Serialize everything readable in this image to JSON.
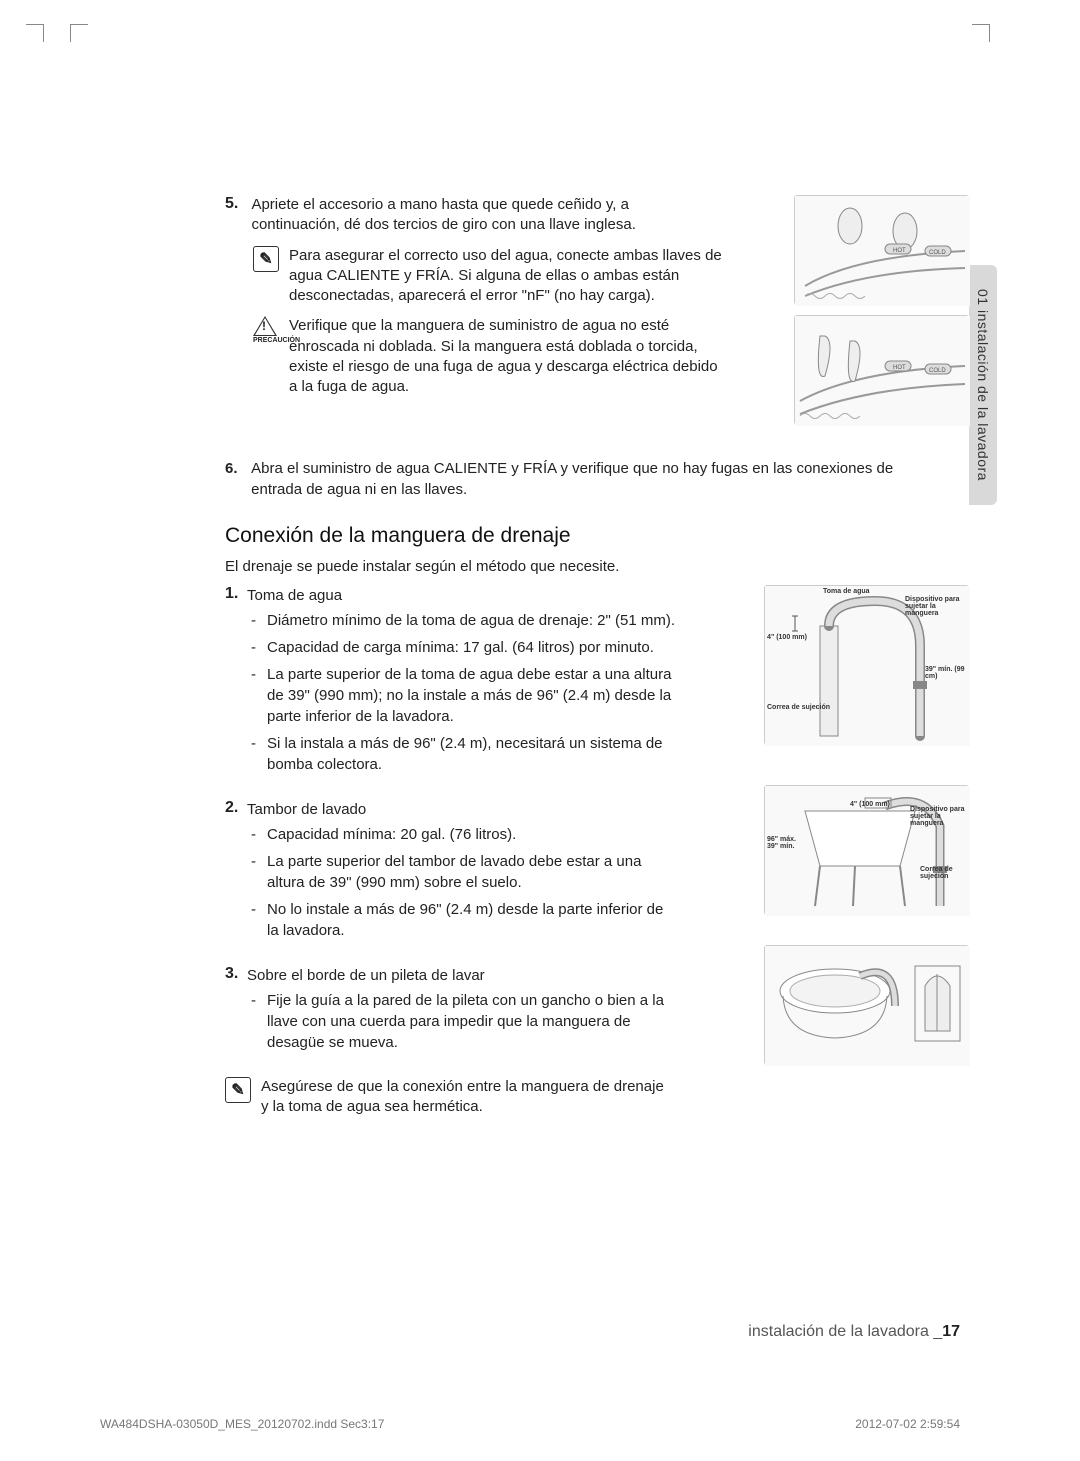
{
  "tab_label": "01  instalación de la lavadora",
  "step5": {
    "num": "5.",
    "text": "Apriete el accesorio a mano hasta que quede ceñido y, a continuación, dé dos tercios de giro con una llave inglesa.",
    "note_icon_glyph": "✎",
    "note": "Para asegurar el correcto uso del agua, conecte ambas llaves de agua CALIENTE y FRÍA. Si alguna de ellas o ambas están desconectadas, aparecerá el error \"nF\" (no hay carga).",
    "caution_label": "PRECAUCIÓN",
    "caution": "Verifique que la manguera de suministro de agua no esté enroscada ni doblada. Si la manguera está doblada o torcida, existe el riesgo de una fuga de agua y descarga eléctrica debido a la fuga de agua."
  },
  "step6": {
    "num": "6.",
    "text": "Abra el suministro de agua CALIENTE y FRÍA y verifique que no hay fugas en las conexiones de entrada de agua ni en las llaves."
  },
  "drain": {
    "heading": "Conexión de la manguera de drenaje",
    "intro": "El drenaje se puede instalar según el método que necesite.",
    "items": [
      {
        "num": "1.",
        "title": "Toma de agua",
        "bullets": [
          "Diámetro mínimo de la toma de agua de drenaje: 2\" (51 mm).",
          "Capacidad de carga mínima: 17 gal. (64 litros) por minuto.",
          "La parte superior de la toma de agua debe estar a una altura de 39\" (990 mm); no la instale a más de 96\" (2.4 m) desde la parte inferior de la lavadora.",
          "Si la instala a más de 96\" (2.4 m), necesitará un sistema de bomba colectora."
        ]
      },
      {
        "num": "2.",
        "title": "Tambor de lavado",
        "bullets": [
          "Capacidad mínima: 20 gal. (76 litros).",
          "La parte superior del tambor de lavado debe estar a una altura de 39\" (990 mm) sobre el suelo.",
          "No lo instale a más de 96\" (2.4 m) desde la parte inferior de la lavadora."
        ]
      },
      {
        "num": "3.",
        "title": "Sobre el borde de un pileta de lavar",
        "bullets": [
          "Fije la guía a la pared de la pileta con un gancho o bien a la llave con una cuerda para impedir que la manguera de desagüe se mueva."
        ]
      }
    ],
    "final_note_glyph": "✎",
    "final_note": "Asegúrese de que la conexión entre la manguera de drenaje y la toma de agua sea hermética."
  },
  "fig_labels": {
    "toma_de_agua": "Toma de agua",
    "dispositivo": "Dispositivo para sujetar la manguera",
    "four_inch": "4\" (100 mm)",
    "thirtynine": "39\" mín. (99 cm)",
    "correa": "Correa de sujeción",
    "maxmin": "96\" máx.\n39\" mín.",
    "hot": "HOT",
    "cold": "COLD"
  },
  "footer": {
    "title_text": "instalación de la lavadora _",
    "page_num": "17",
    "indd": "WA484DSHA-03050D_MES_20120702.indd   Sec3:17",
    "timestamp": "2012-07-02     2:59:54"
  },
  "colors": {
    "text": "#222222",
    "tab_bg": "#d9d9d9",
    "fig_bg": "#f9f9f9",
    "fig_border": "#cccccc",
    "footer_gray": "#777777"
  }
}
